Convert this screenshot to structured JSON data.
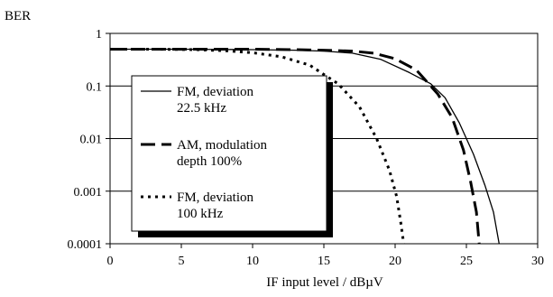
{
  "chart_data": {
    "type": "line",
    "title": "",
    "ylabel": "BER",
    "xlabel": "IF input level / dBµV",
    "xlim": [
      0,
      30
    ],
    "ylim": [
      0.0001,
      1
    ],
    "y_scale": "log",
    "grid": "horizontal",
    "legend_position": "left",
    "x_ticks": [
      0,
      5,
      10,
      15,
      20,
      25,
      30
    ],
    "x_tick_labels": [
      "0",
      "5",
      "10",
      "15",
      "20",
      "25",
      "30"
    ],
    "y_ticks": [
      1,
      0.1,
      0.01,
      0.001,
      0.0001
    ],
    "y_tick_labels": [
      "1",
      "0.1",
      "0.01",
      "0.001",
      "0.0001"
    ],
    "series": [
      {
        "name_lines": [
          "FM, deviation",
          "22.5 kHz"
        ],
        "style": "solid",
        "color": "#000000",
        "x": [
          0,
          5,
          10,
          13,
          15,
          17,
          19,
          21,
          22.5,
          23.5,
          24.5,
          25.5,
          26.3,
          26.9,
          27.3
        ],
        "y": [
          0.5,
          0.5,
          0.49,
          0.48,
          0.46,
          0.42,
          0.32,
          0.18,
          0.11,
          0.06,
          0.02,
          0.005,
          0.0013,
          0.0004,
          0.0001
        ]
      },
      {
        "name_lines": [
          "AM, modulation",
          "depth 100%"
        ],
        "style": "dashed",
        "color": "#000000",
        "x": [
          0,
          5,
          10,
          13,
          15,
          17,
          18.5,
          20,
          21.5,
          23,
          24,
          24.8,
          25.3,
          25.7,
          25.9
        ],
        "y": [
          0.5,
          0.5,
          0.5,
          0.49,
          0.48,
          0.46,
          0.42,
          0.33,
          0.2,
          0.07,
          0.025,
          0.006,
          0.0015,
          0.0004,
          0.0001
        ]
      },
      {
        "name_lines": [
          "FM, deviation",
          "100 kHz"
        ],
        "style": "dotted",
        "color": "#000000",
        "x": [
          0,
          3,
          6,
          8,
          10,
          12,
          14,
          16,
          17.5,
          18.7,
          19.6,
          20.1,
          20.4,
          20.6
        ],
        "y": [
          0.5,
          0.5,
          0.49,
          0.47,
          0.43,
          0.36,
          0.25,
          0.11,
          0.04,
          0.01,
          0.0025,
          0.0008,
          0.00025,
          0.0001
        ]
      }
    ]
  }
}
